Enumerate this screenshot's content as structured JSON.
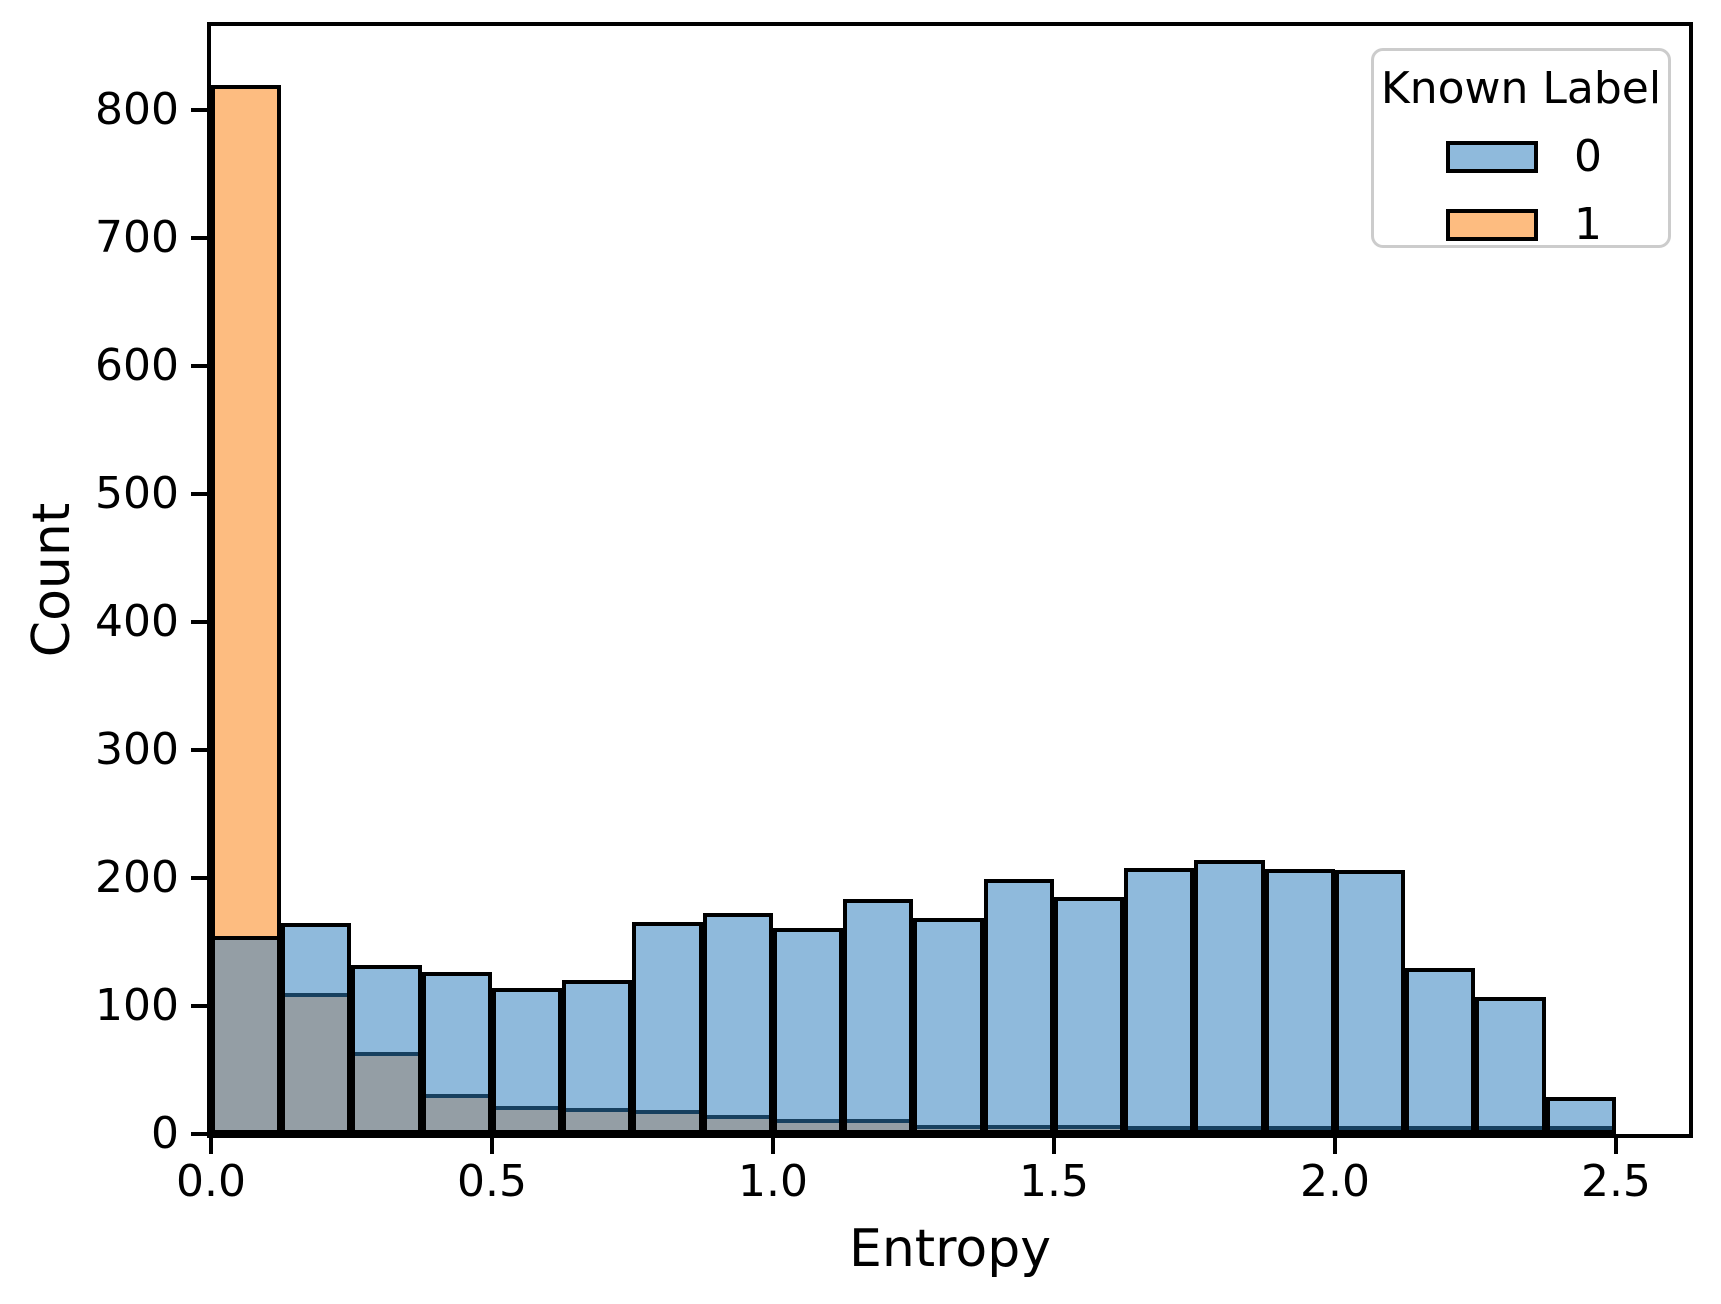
{
  "chart_data": {
    "type": "histogram",
    "title": "",
    "xlabel": "Entropy",
    "ylabel": "Count",
    "bin_start": 0.0,
    "bin_width": 0.125,
    "n_bins": 20,
    "bin_edges": [
      0.0,
      0.125,
      0.25,
      0.375,
      0.5,
      0.625,
      0.75,
      0.875,
      1.0,
      1.125,
      1.25,
      1.375,
      1.5,
      1.625,
      1.75,
      1.875,
      2.0,
      2.125,
      2.25,
      2.375,
      2.5
    ],
    "series": [
      {
        "name": "0",
        "color": "#8FBADC",
        "values": [
          155,
          165,
          132,
          127,
          114,
          120,
          166,
          173,
          161,
          184,
          169,
          199,
          185,
          208,
          214,
          207,
          206,
          130,
          107,
          29
        ]
      },
      {
        "name": "1",
        "color": "#FDBC80",
        "values": [
          820,
          110,
          64,
          31,
          22,
          20,
          19,
          15,
          12,
          12,
          7,
          7,
          7,
          0,
          0,
          0,
          0,
          0,
          0,
          0
        ]
      }
    ],
    "overlap_color": "#949EA5",
    "overlap_line_color": "#17405F",
    "edge_color": "#000000",
    "xlim": [
      0,
      2.63
    ],
    "ylim": [
      0,
      866
    ],
    "grid": "off",
    "yticks": [
      {
        "value": 0,
        "label": "0"
      },
      {
        "value": 100,
        "label": "100"
      },
      {
        "value": 200,
        "label": "200"
      },
      {
        "value": 300,
        "label": "300"
      },
      {
        "value": 400,
        "label": "400"
      },
      {
        "value": 500,
        "label": "500"
      },
      {
        "value": 600,
        "label": "600"
      },
      {
        "value": 700,
        "label": "700"
      },
      {
        "value": 800,
        "label": "800"
      }
    ],
    "xticks": [
      {
        "value": 0.0,
        "label": "0.0"
      },
      {
        "value": 0.5,
        "label": "0.5"
      },
      {
        "value": 1.0,
        "label": "1.0"
      },
      {
        "value": 1.5,
        "label": "1.5"
      },
      {
        "value": 2.0,
        "label": "2.0"
      },
      {
        "value": 2.5,
        "label": "2.5"
      }
    ],
    "legend": {
      "title": "Known Label",
      "position": "upper right",
      "entries": [
        {
          "label": "0",
          "color": "#8FBADC"
        },
        {
          "label": "1",
          "color": "#FDBC80"
        }
      ]
    }
  }
}
